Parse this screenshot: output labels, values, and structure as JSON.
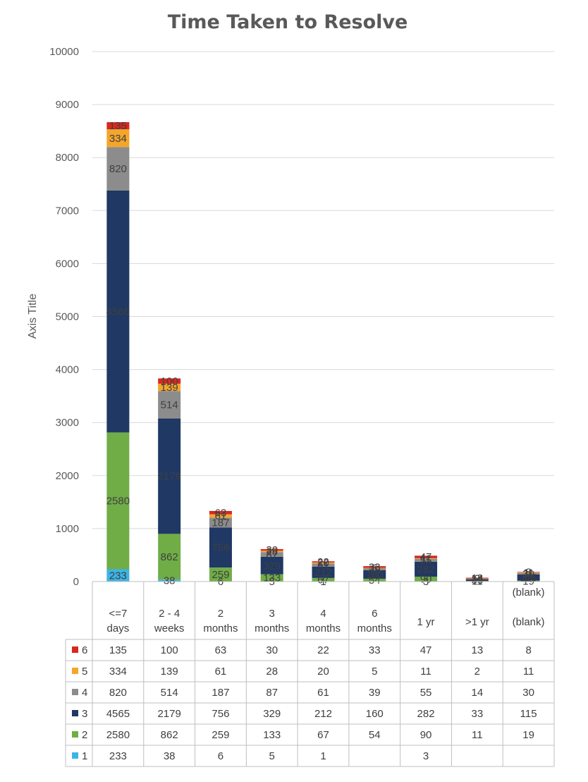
{
  "chart_data": {
    "type": "bar",
    "stacked": true,
    "title": "Time Taken to Resolve",
    "xlabel": "",
    "ylabel": "Axis Title",
    "ylim": [
      0,
      10000
    ],
    "yticks": [
      "0",
      "1000",
      "2000",
      "3000",
      "4000",
      "5000",
      "6000",
      "7000",
      "8000",
      "9000",
      "10000"
    ],
    "categories": [
      [
        "<=7",
        "days"
      ],
      [
        "2 - 4",
        "weeks"
      ],
      [
        "2",
        "months"
      ],
      [
        "3",
        "months"
      ],
      [
        "4",
        "months"
      ],
      [
        "6",
        "months"
      ],
      [
        "1 yr"
      ],
      [
        ">1 yr"
      ],
      [
        "(blank)",
        "(blank)"
      ]
    ],
    "series": [
      {
        "name": "1",
        "color": "#3DB4E5",
        "values": [
          233,
          38,
          6,
          5,
          1,
          null,
          3,
          null,
          null
        ]
      },
      {
        "name": "2",
        "color": "#70AD47",
        "values": [
          2580,
          862,
          259,
          133,
          67,
          54,
          90,
          11,
          19
        ]
      },
      {
        "name": "3",
        "color": "#203864",
        "values": [
          4565,
          2179,
          756,
          329,
          212,
          160,
          282,
          33,
          115
        ]
      },
      {
        "name": "4",
        "color": "#8C8C8C",
        "values": [
          820,
          514,
          187,
          87,
          61,
          39,
          55,
          14,
          30
        ]
      },
      {
        "name": "5",
        "color": "#F4A62A",
        "values": [
          334,
          139,
          61,
          28,
          20,
          5,
          11,
          2,
          11
        ]
      },
      {
        "name": "6",
        "color": "#D9271E",
        "values": [
          135,
          100,
          63,
          30,
          22,
          33,
          47,
          13,
          8
        ]
      }
    ],
    "grid": true,
    "legend": "data-table-left"
  }
}
